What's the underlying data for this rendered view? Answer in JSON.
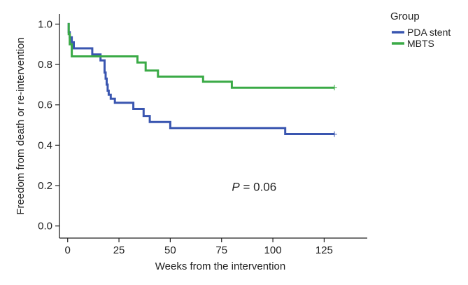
{
  "chart_data": {
    "type": "line",
    "title": "",
    "xlabel": "Weeks from the intervention",
    "ylabel": "Freedom from death or re-intervention",
    "xlim": [
      -4,
      146
    ],
    "ylim": [
      -0.06,
      1.05
    ],
    "xticks": [
      0,
      25,
      50,
      75,
      100,
      125
    ],
    "xtick_labels": [
      "0",
      "25",
      "50",
      "75",
      "100",
      "125"
    ],
    "yticks": [
      0.0,
      0.2,
      0.4,
      0.6,
      0.8,
      1.0
    ],
    "ytick_labels": [
      "0.0",
      "0.2",
      "0.4",
      "0.6",
      "0.8",
      "1.0"
    ],
    "grid": false,
    "legend": {
      "title": "Group",
      "position": "top-right"
    },
    "annotation": {
      "symbol": "P",
      "rest": " = 0.06",
      "x": 80,
      "y": 0.175
    },
    "step": true,
    "series": [
      {
        "name": "PDA stent",
        "color": "#3a56b0",
        "x": [
          0,
          0.5,
          1,
          2,
          3,
          5,
          12,
          16,
          18,
          18.5,
          19,
          19.5,
          20,
          21,
          23,
          32,
          37,
          40,
          50,
          106,
          130
        ],
        "y": [
          1.0,
          0.96,
          0.935,
          0.91,
          0.88,
          0.88,
          0.85,
          0.82,
          0.76,
          0.73,
          0.7,
          0.67,
          0.65,
          0.63,
          0.61,
          0.58,
          0.545,
          0.515,
          0.485,
          0.455,
          0.455
        ]
      },
      {
        "name": "MBTS",
        "color": "#3aaa46",
        "x": [
          0,
          0.5,
          1,
          2,
          32,
          34,
          38,
          44,
          66,
          80,
          130
        ],
        "y": [
          1.0,
          0.95,
          0.9,
          0.84,
          0.84,
          0.81,
          0.77,
          0.74,
          0.715,
          0.685,
          0.685
        ]
      }
    ]
  }
}
